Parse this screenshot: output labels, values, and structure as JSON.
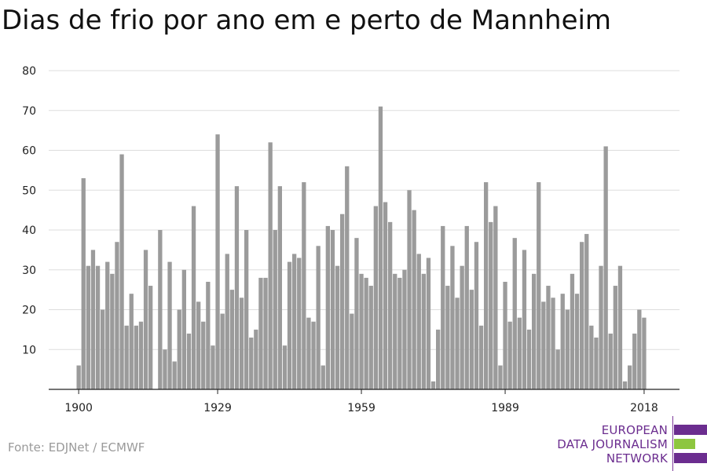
{
  "title": "Dias de frio por ano em e perto de Mannheim",
  "source": "Fonte: EDJNet / ECMWF",
  "logo": {
    "line1": "EUROPEAN",
    "line2": "DATA JOURNALISM",
    "line3": "NETWORK",
    "colors": {
      "purple": "#6b2d8f",
      "green": "#8dc63f"
    }
  },
  "colors": {
    "bar": "#9b9b9b",
    "grid": "#dddddd",
    "axis": "#222222"
  },
  "chart_data": {
    "type": "bar",
    "title": "Dias de frio por ano em e perto de Mannheim",
    "xlabel": "",
    "ylabel": "",
    "ylim": [
      0,
      80
    ],
    "yticks": [
      10,
      20,
      30,
      40,
      50,
      60,
      70,
      80
    ],
    "xticks": [
      1900,
      1929,
      1959,
      1989,
      2018
    ],
    "grid": true,
    "x": [
      1900,
      1901,
      1902,
      1903,
      1904,
      1905,
      1906,
      1907,
      1908,
      1909,
      1910,
      1911,
      1912,
      1913,
      1914,
      1915,
      1916,
      1917,
      1918,
      1919,
      1920,
      1921,
      1922,
      1923,
      1924,
      1925,
      1926,
      1927,
      1928,
      1929,
      1930,
      1931,
      1932,
      1933,
      1934,
      1935,
      1936,
      1937,
      1938,
      1939,
      1940,
      1941,
      1942,
      1943,
      1944,
      1945,
      1946,
      1947,
      1948,
      1949,
      1950,
      1951,
      1952,
      1953,
      1954,
      1955,
      1956,
      1957,
      1958,
      1959,
      1960,
      1961,
      1962,
      1963,
      1964,
      1965,
      1966,
      1967,
      1968,
      1969,
      1970,
      1971,
      1972,
      1973,
      1974,
      1975,
      1976,
      1977,
      1978,
      1979,
      1980,
      1981,
      1982,
      1983,
      1984,
      1985,
      1986,
      1987,
      1988,
      1989,
      1990,
      1991,
      1992,
      1993,
      1994,
      1995,
      1996,
      1997,
      1998,
      1999,
      2000,
      2001,
      2002,
      2003,
      2004,
      2005,
      2006,
      2007,
      2008,
      2009,
      2010,
      2011,
      2012,
      2013,
      2014,
      2015,
      2016,
      2017,
      2018
    ],
    "values": [
      6,
      53,
      31,
      35,
      31,
      20,
      32,
      29,
      37,
      59,
      16,
      24,
      16,
      17,
      35,
      26,
      0,
      40,
      10,
      32,
      7,
      20,
      30,
      14,
      46,
      22,
      17,
      27,
      11,
      64,
      19,
      34,
      25,
      51,
      23,
      40,
      13,
      15,
      28,
      28,
      62,
      40,
      51,
      11,
      32,
      34,
      33,
      52,
      18,
      17,
      36,
      6,
      41,
      40,
      31,
      44,
      56,
      19,
      38,
      29,
      28,
      26,
      46,
      71,
      47,
      42,
      29,
      28,
      30,
      50,
      45,
      34,
      29,
      33,
      2,
      15,
      41,
      26,
      36,
      23,
      31,
      41,
      25,
      37,
      16,
      52,
      42,
      46,
      6,
      27,
      17,
      38,
      18,
      35,
      15,
      29,
      52,
      22,
      26,
      23,
      10,
      24,
      20,
      29,
      24,
      37,
      39,
      16,
      13,
      31,
      61,
      14,
      26,
      31,
      2,
      6,
      14,
      20,
      18
    ]
  }
}
